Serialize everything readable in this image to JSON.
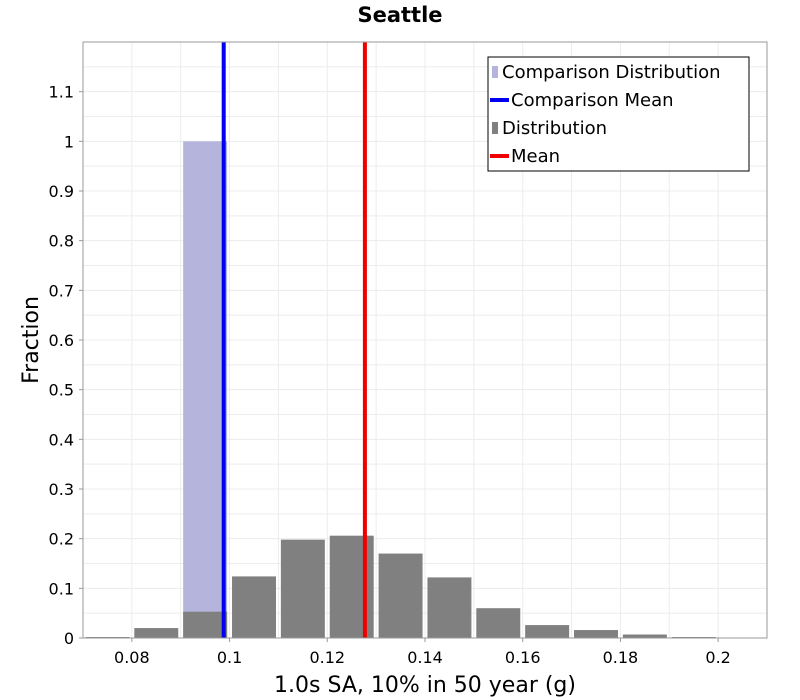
{
  "chart_data": {
    "type": "bar",
    "title": "Seattle",
    "xlabel": "1.0s SA, 10% in 50 year (g)",
    "ylabel": "Fraction",
    "xlim": [
      0.07,
      0.21
    ],
    "ylim": [
      0,
      1.2
    ],
    "x_ticks": [
      0.08,
      0.1,
      0.12,
      0.14,
      0.16,
      0.18,
      0.2
    ],
    "x_tick_labels": [
      "0.08",
      "0.1",
      "0.12",
      "0.14",
      "0.16",
      "0.18",
      "0.2"
    ],
    "y_ticks": [
      0,
      0.1,
      0.2,
      0.3,
      0.4,
      0.5,
      0.6,
      0.7,
      0.8,
      0.9,
      1,
      1.1
    ],
    "y_tick_labels": [
      "0",
      "0.1",
      "0.2",
      "0.3",
      "0.4",
      "0.5",
      "0.6",
      "0.7",
      "0.8",
      "0.9",
      "1",
      "1.1"
    ],
    "grid": true,
    "legend_position": "top-right",
    "series": [
      {
        "name": "Comparison Distribution",
        "kind": "bar",
        "color": "#b4b4dc",
        "bin_width": 0.009,
        "x": [
          0.095
        ],
        "values": [
          1.0
        ]
      },
      {
        "name": "Distribution",
        "kind": "bar",
        "color": "#808080",
        "bin_width": 0.009,
        "x": [
          0.075,
          0.085,
          0.095,
          0.105,
          0.115,
          0.125,
          0.135,
          0.145,
          0.155,
          0.165,
          0.175,
          0.185,
          0.195
        ],
        "values": [
          0.002,
          0.02,
          0.053,
          0.124,
          0.198,
          0.206,
          0.17,
          0.122,
          0.06,
          0.026,
          0.016,
          0.007,
          0.002
        ]
      },
      {
        "name": "Comparison Mean",
        "kind": "vline",
        "color": "#0000ee",
        "x": 0.0988
      },
      {
        "name": "Mean",
        "kind": "vline",
        "color": "#ee0000",
        "x": 0.1277
      }
    ],
    "legend": [
      {
        "label": "Comparison Distribution",
        "marker": "bar",
        "color": "#b4b4dc"
      },
      {
        "label": "Comparison Mean",
        "marker": "line",
        "color": "#0000ee"
      },
      {
        "label": "Distribution",
        "marker": "bar",
        "color": "#808080"
      },
      {
        "label": "Mean",
        "marker": "line",
        "color": "#ee0000"
      }
    ]
  }
}
